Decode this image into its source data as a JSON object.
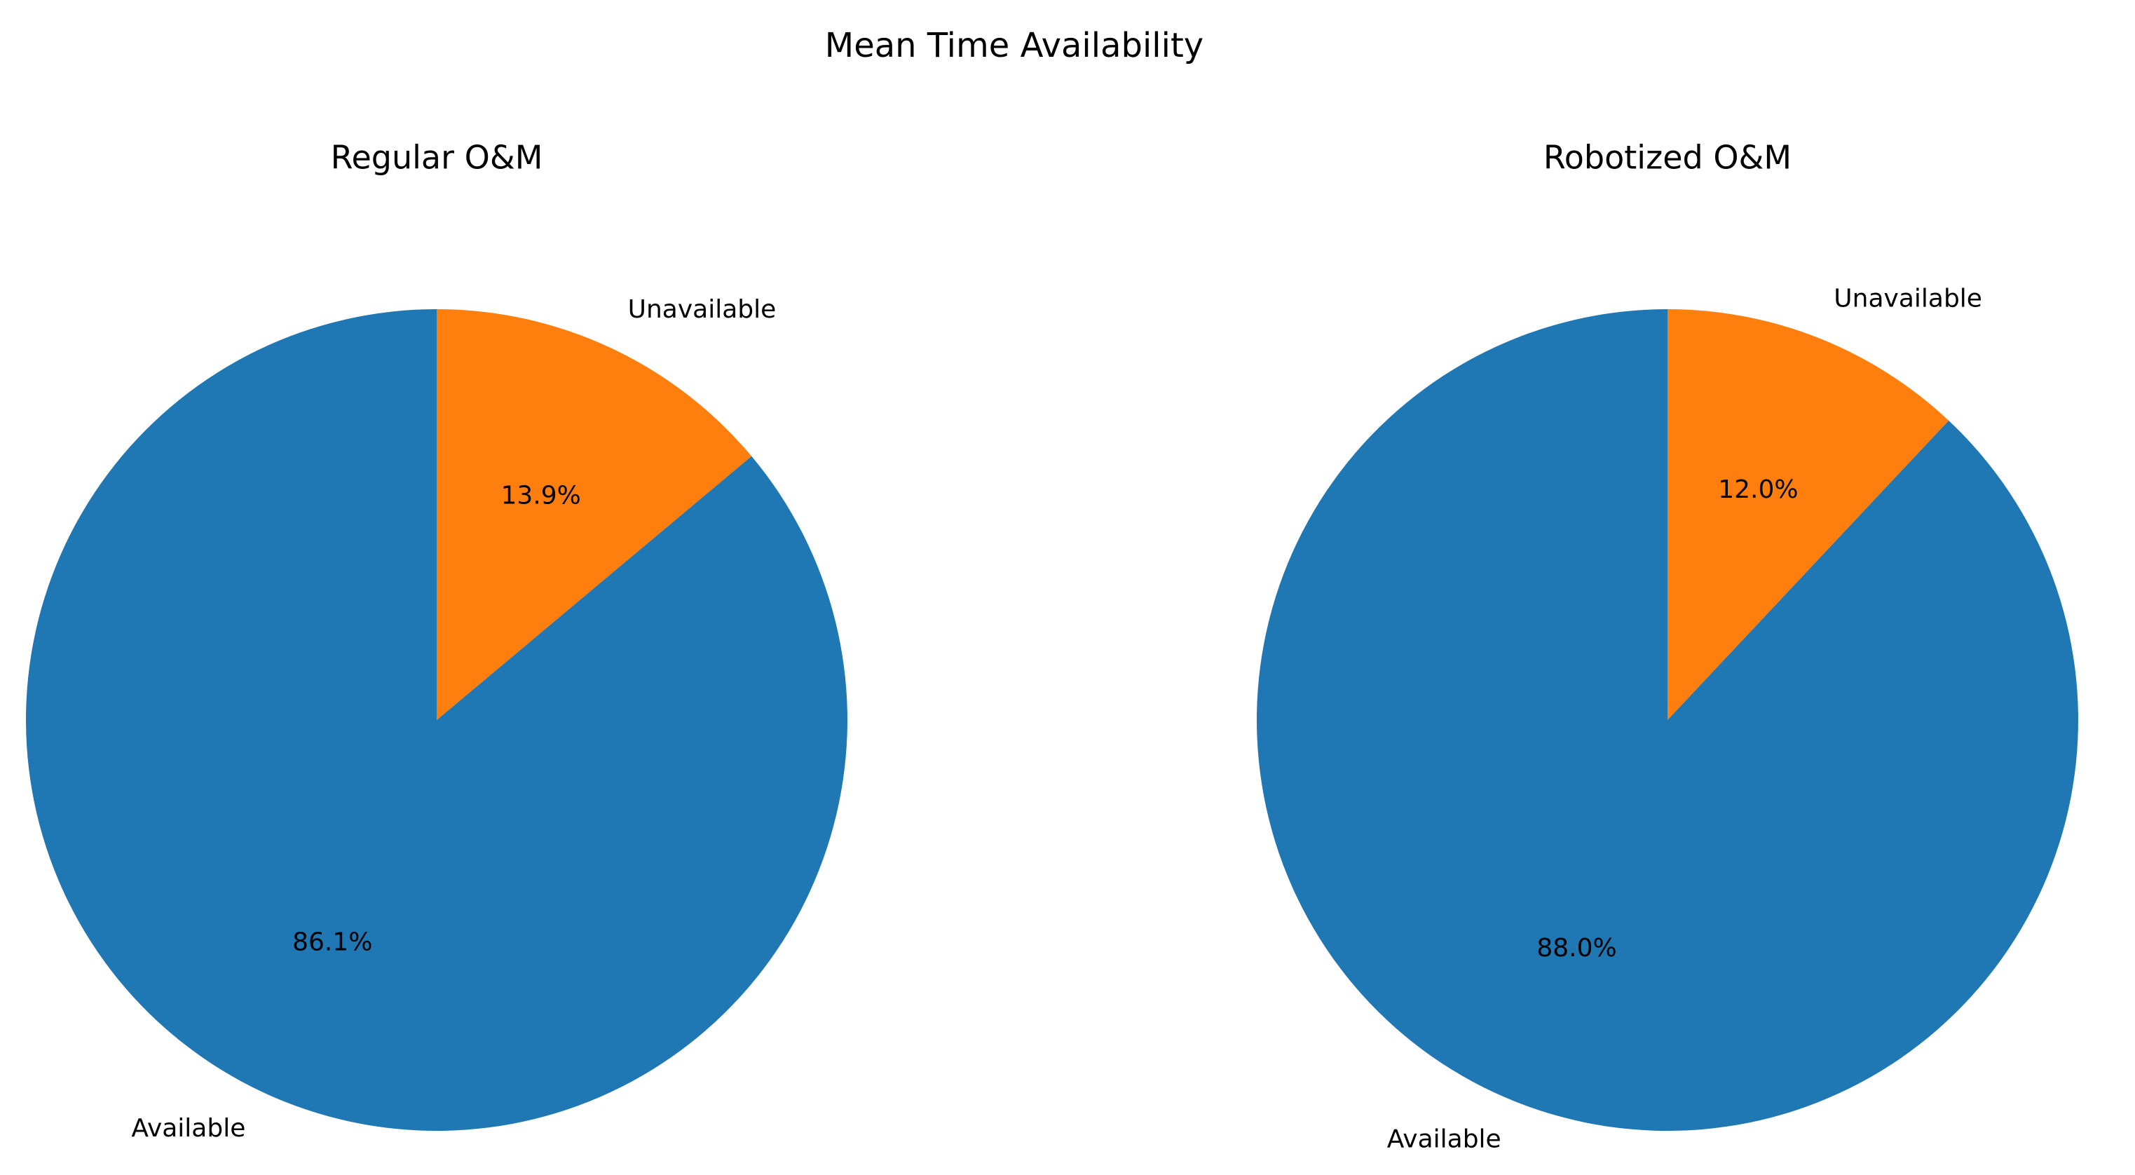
{
  "title": "Mean Time Availability",
  "chart_data": [
    {
      "type": "pie",
      "title": "Regular O&M",
      "categories": [
        "Available",
        "Unavailable"
      ],
      "values": [
        86.1,
        13.9
      ],
      "value_labels": [
        "86.1%",
        "13.9%"
      ],
      "colors": [
        "#1f77b4",
        "#ff7f0e"
      ]
    },
    {
      "type": "pie",
      "title": "Robotized O&M",
      "categories": [
        "Available",
        "Unavailable"
      ],
      "values": [
        88.0,
        12.0
      ],
      "value_labels": [
        "88.0%",
        "12.0%"
      ],
      "colors": [
        "#1f77b4",
        "#ff7f0e"
      ]
    }
  ]
}
